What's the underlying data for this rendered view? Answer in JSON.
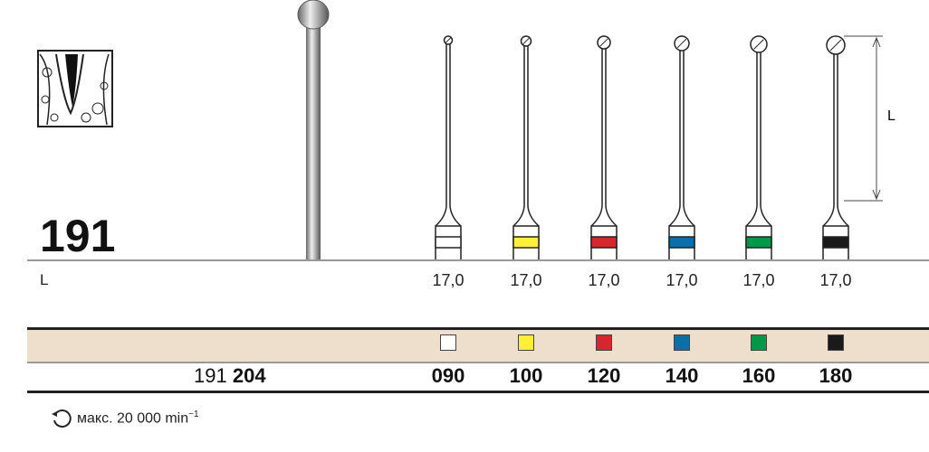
{
  "product_number": "191",
  "length_label": "L",
  "dimension_label": "L",
  "lengths": [
    "17,0",
    "17,0",
    "17,0",
    "17,0",
    "17,0",
    "17,0"
  ],
  "reference": {
    "prefix": "191",
    "suffix": "204"
  },
  "sizes": [
    {
      "code": "090",
      "color": "#ffffff"
    },
    {
      "code": "100",
      "color": "#fff035"
    },
    {
      "code": "120",
      "color": "#d8262e"
    },
    {
      "code": "140",
      "color": "#0a6fab"
    },
    {
      "code": "160",
      "color": "#00994a"
    },
    {
      "code": "180",
      "color": "#1a1a1a"
    }
  ],
  "footer": {
    "text": "макс. 20 000 min",
    "exponent": "−1",
    "icon": "rotation-icon"
  },
  "colors": {
    "band": "#eddfcb"
  }
}
